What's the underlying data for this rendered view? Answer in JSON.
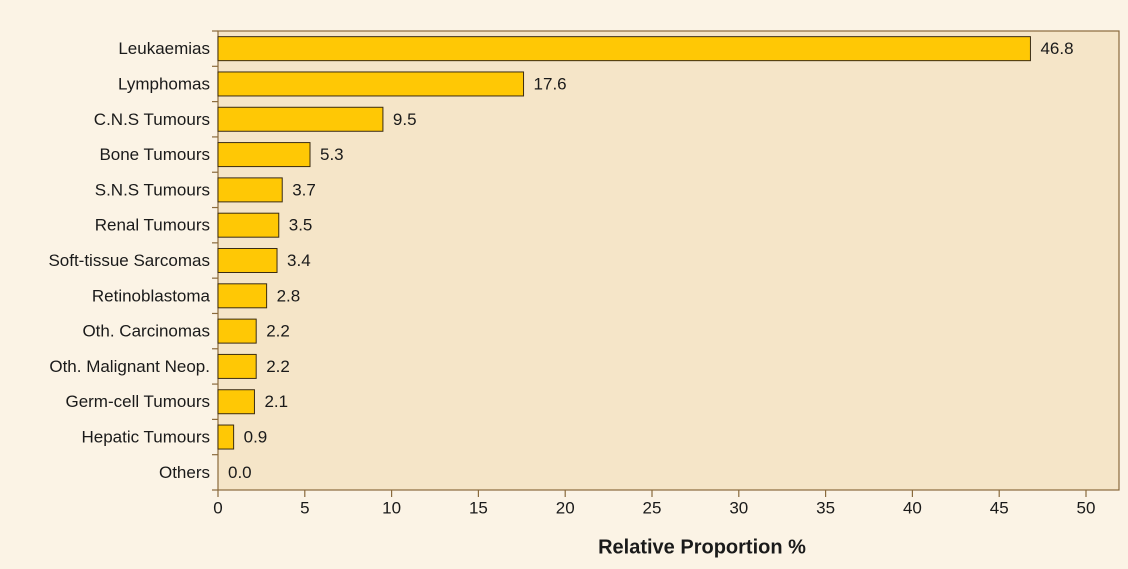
{
  "chart_data": {
    "type": "barh",
    "xlabel": "Relative Proportion %",
    "categories": [
      "Leukaemias",
      "Lymphomas",
      "C.N.S Tumours",
      "Bone Tumours",
      "S.N.S Tumours",
      "Renal Tumours",
      "Soft-tissue Sarcomas",
      "Retinoblastoma",
      "Oth. Carcinomas",
      "Oth. Malignant Neop.",
      "Germ-cell Tumours",
      "Hepatic Tumours",
      "Others"
    ],
    "values": [
      46.8,
      17.6,
      9.5,
      5.3,
      3.7,
      3.5,
      3.4,
      2.8,
      2.2,
      2.2,
      2.1,
      0.9,
      0
    ],
    "value_labels": [
      "46.8",
      "17.6",
      "9.5",
      "5.3",
      "3.7",
      "3.5",
      "3.4",
      "2.8",
      "2.2",
      "2.2",
      "2.1",
      "0.9",
      "0.0"
    ],
    "color": "#ffc805",
    "xlim": [
      0,
      50
    ],
    "xticks": [
      0,
      5,
      10,
      15,
      20,
      25,
      30,
      35,
      40,
      45,
      50
    ]
  }
}
